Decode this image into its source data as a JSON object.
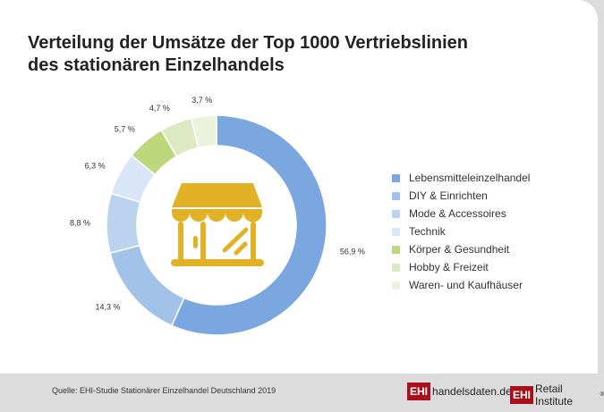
{
  "title_lines": [
    "Verteilung der Umsätze der Top 1000 Vertriebslinien",
    "des stationären Einzelhandels"
  ],
  "chart_data": {
    "type": "pie",
    "variant": "donut",
    "start": "top, clockwise",
    "categories": [
      "Lebensmitteleinzelhandel",
      "DIY & Einrichten",
      "Mode & Accessoires",
      "Technik",
      "Körper & Gesundheit",
      "Hobby & Freizeit",
      "Waren- und Kaufhäuser"
    ],
    "values": [
      56.9,
      14.3,
      8.8,
      6.3,
      5.7,
      4.7,
      3.7
    ],
    "labels": [
      "56,9 %",
      "14,3 %",
      "8,8 %",
      "6,3 %",
      "5,7 %",
      "4,7 %",
      "3,7 %"
    ],
    "colors": [
      "#7aa7df",
      "#a2c2ea",
      "#bcd3f0",
      "#d8e6f7",
      "#bfd77c",
      "#dde9c2",
      "#ecf3dd"
    ],
    "legend_position": "right",
    "center_icon": "store-icon",
    "icon_color": "#e2b226"
  },
  "source": "Quelle: EHI-Studie Stationärer Einzelhandel Deutschland 2019",
  "logos": {
    "ehi": "EHI",
    "site": "handelsdaten.de",
    "institute": "Retail Institute",
    "reg": "®"
  }
}
